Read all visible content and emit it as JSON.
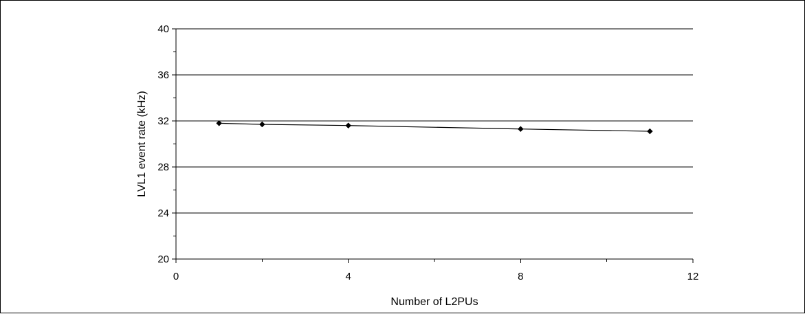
{
  "chart_data": {
    "type": "line",
    "title": "",
    "xlabel": "Number of L2PUs",
    "ylabel": "LVL1 event rate (kHz)",
    "xlim": [
      0,
      12
    ],
    "ylim": [
      20,
      40
    ],
    "x_ticks": [
      0,
      4,
      8,
      12
    ],
    "x_tick_labels": [
      "0",
      "4",
      "8",
      "12"
    ],
    "x_minor_ticks": [
      2,
      6,
      10
    ],
    "y_ticks": [
      20,
      24,
      28,
      32,
      36,
      40
    ],
    "y_tick_labels": [
      "20",
      "24",
      "28",
      "32",
      "36",
      "40"
    ],
    "y_minor_ticks": [
      22,
      26,
      30,
      34,
      38
    ],
    "grid": "horizontal major gridlines",
    "legend": "none",
    "series": [
      {
        "x": [
          1,
          2,
          4,
          8,
          11
        ],
        "values": [
          31.8,
          31.7,
          31.6,
          31.3,
          31.1
        ],
        "color": "#000000",
        "marker": "diamond"
      }
    ]
  }
}
